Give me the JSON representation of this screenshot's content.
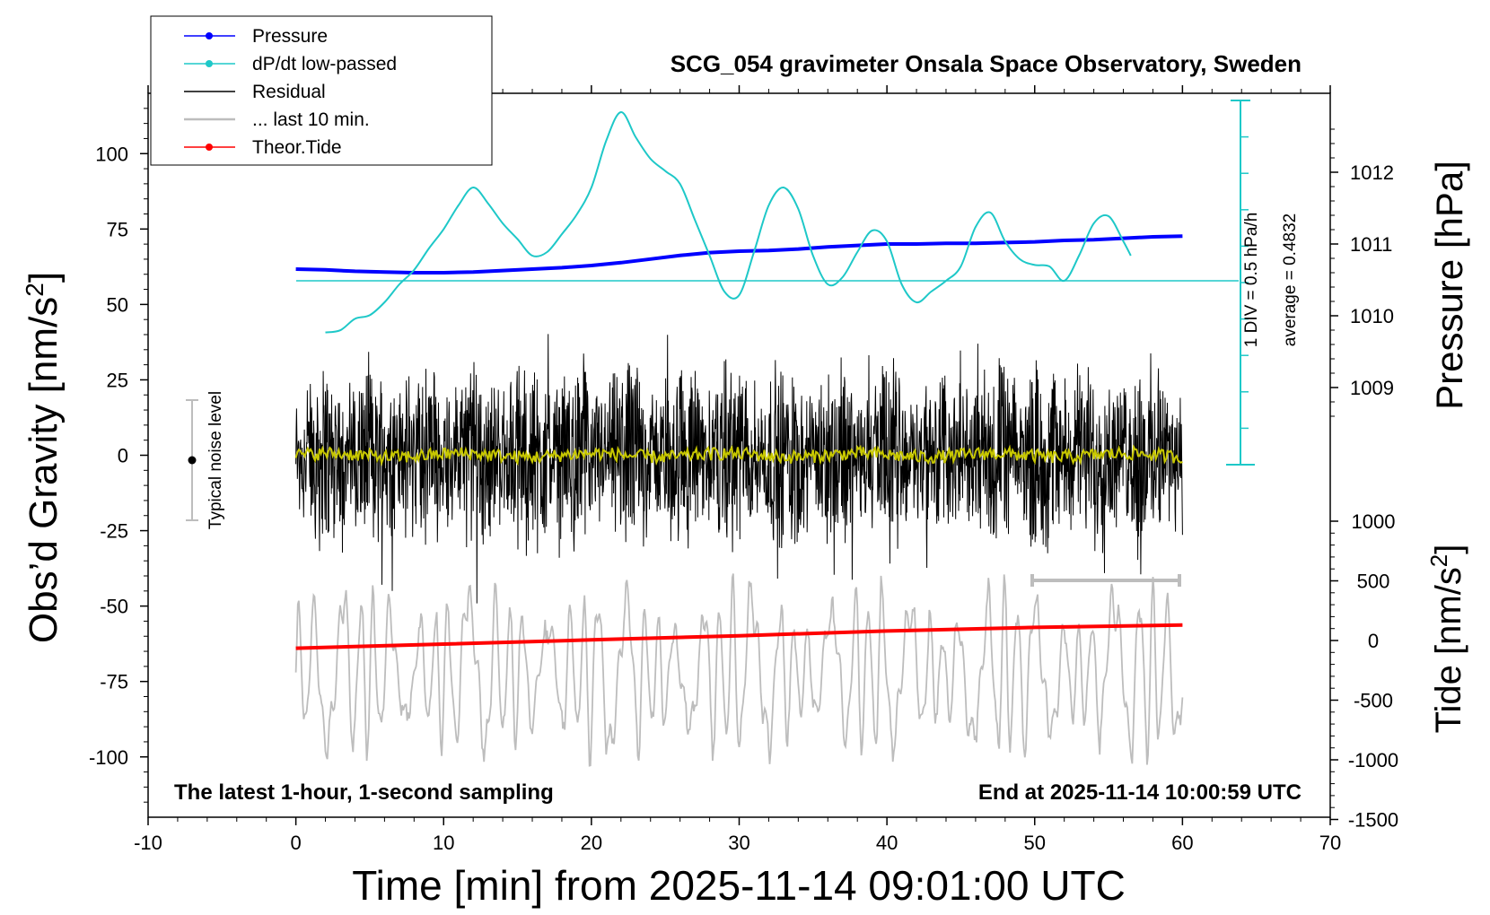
{
  "chart_data": {
    "type": "line",
    "title": "SCG_054 gravimeter Onsala Space Observatory, Sweden",
    "xlabel": "Time [min] from 2025-11-14 09:01:00 UTC",
    "ylabel_left": "Obs’d Gravity [nm/s²]",
    "ylabel_right_top": "Pressure [hPa]",
    "ylabel_right_bottom": "Tide [nm/s²]",
    "bottom_left_note": "The latest 1-hour, 1-second sampling",
    "bottom_right_note": "End at 2025-11-14 10:00:59 UTC",
    "noise_label": "Typical noise level",
    "dpdt_scale_label": "1 DIV = 0.5 hPa/h",
    "dpdt_average_label": "average = 0.4832",
    "xlim": [
      -10,
      70
    ],
    "ylim_left": [
      -120,
      120
    ],
    "x_ticks": [
      "-10",
      "0",
      "10",
      "20",
      "30",
      "40",
      "50",
      "60",
      "70"
    ],
    "y_ticks_left": [
      "100",
      "75",
      "50",
      "25",
      "0",
      "-25",
      "-50",
      "-75",
      "-100"
    ],
    "pressure_ticks": [
      "1012",
      "1011",
      "1010",
      "1009"
    ],
    "tide_ticks": [
      "1000",
      "500",
      "0",
      "-500",
      "-1000",
      "-1500"
    ],
    "legend": {
      "position": "top-left",
      "items": [
        {
          "label": "Pressure",
          "color": "#0000ff",
          "marker": "dot"
        },
        {
          "label": "dP/dt low-passed",
          "color": "#1ec8c8",
          "marker": "dot"
        },
        {
          "label": "Residual",
          "color": "#000000",
          "marker": "none"
        },
        {
          "label": "... last 10 min.",
          "color": "#bdbdbd",
          "marker": "none"
        },
        {
          "label": "Theor.Tide",
          "color": "#ff0000",
          "marker": "dot"
        }
      ]
    },
    "series": [
      {
        "name": "Pressure",
        "color": "#0000ff",
        "unit": "hPa",
        "x": [
          0,
          2,
          4,
          6,
          8,
          10,
          12,
          14,
          16,
          18,
          20,
          22,
          24,
          26,
          28,
          30,
          32,
          34,
          36,
          38,
          40,
          42,
          44,
          46,
          48,
          50,
          52,
          54,
          56,
          58,
          60
        ],
        "y": [
          1010.65,
          1010.64,
          1010.62,
          1010.61,
          1010.6,
          1010.6,
          1010.61,
          1010.63,
          1010.65,
          1010.67,
          1010.7,
          1010.74,
          1010.79,
          1010.84,
          1010.88,
          1010.9,
          1010.91,
          1010.93,
          1010.96,
          1010.98,
          1011.0,
          1011.0,
          1011.01,
          1011.01,
          1011.02,
          1011.03,
          1011.05,
          1011.06,
          1011.08,
          1011.1,
          1011.11
        ]
      },
      {
        "name": "dP/dt low-passed",
        "color": "#1ec8c8",
        "unit": "hPa/h",
        "x": [
          2,
          3,
          4,
          5,
          6,
          7,
          8,
          9,
          10,
          11,
          12,
          13,
          14,
          15,
          16,
          17,
          18,
          19,
          20,
          21,
          22,
          23,
          24,
          25,
          26,
          27,
          28,
          29,
          30,
          31,
          32,
          33,
          34,
          35,
          36,
          37,
          38,
          39,
          40,
          41,
          42,
          43,
          44,
          45,
          46,
          47,
          48,
          49,
          50,
          51,
          52,
          53,
          54,
          55,
          56,
          56.5
        ],
        "y": [
          -0.72,
          -0.69,
          -0.53,
          -0.48,
          -0.3,
          -0.05,
          0.15,
          0.45,
          0.72,
          1.05,
          1.3,
          1.08,
          0.8,
          0.58,
          0.35,
          0.4,
          0.65,
          0.92,
          1.3,
          1.95,
          2.35,
          2.0,
          1.7,
          1.53,
          1.35,
          0.85,
          0.35,
          -0.15,
          -0.2,
          0.4,
          1.05,
          1.3,
          1.0,
          0.35,
          -0.05,
          0.05,
          0.4,
          0.7,
          0.55,
          -0.05,
          -0.3,
          -0.15,
          0.0,
          0.2,
          0.75,
          0.95,
          0.55,
          0.3,
          0.22,
          0.2,
          0.0,
          0.35,
          0.8,
          0.9,
          0.55,
          0.35
        ]
      },
      {
        "name": "Residual",
        "color": "#000000",
        "unit": "nm/s²",
        "x_range": [
          0,
          60
        ],
        "envelope": 40
      },
      {
        "name": "... last 10 min.",
        "color": "#bdbdbd",
        "unit": "nm/s²",
        "x_range": [
          0,
          60
        ]
      },
      {
        "name": "Theor.Tide",
        "color": "#ff0000",
        "unit": "nm/s²",
        "x": [
          0,
          10,
          20,
          30,
          40,
          50,
          60
        ],
        "y": [
          -65,
          -30,
          5,
          40,
          80,
          110,
          130
        ]
      }
    ]
  }
}
